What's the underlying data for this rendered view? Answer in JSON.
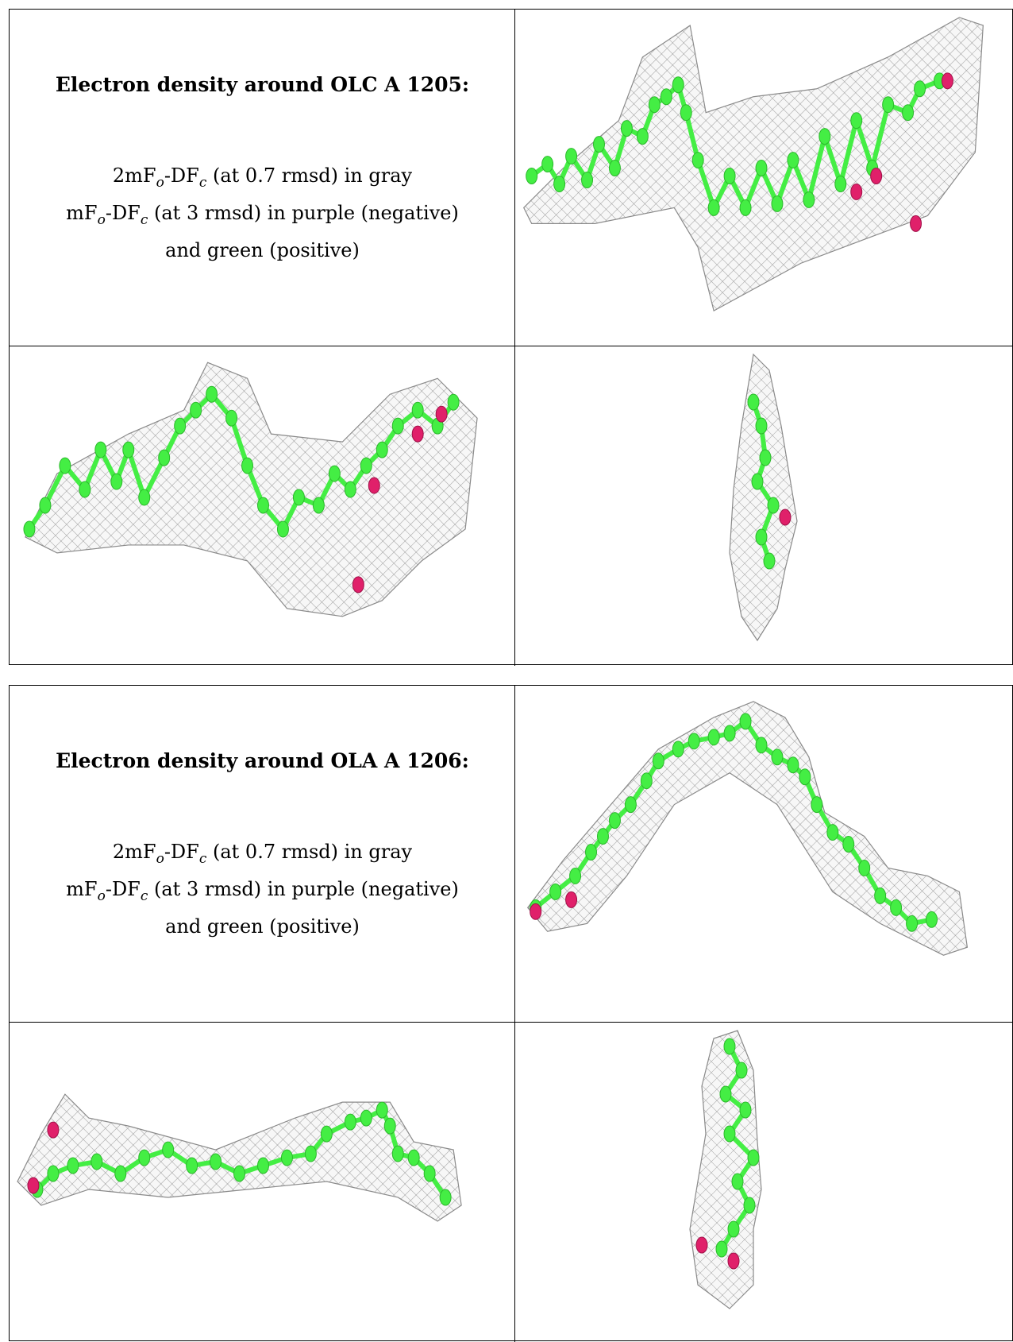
{
  "panels": [
    {
      "heading": "Electron density around OLC A 1205:",
      "caption": {
        "line1_a": "2mF",
        "line1_sub1": "o",
        "line1_b": "-DF",
        "line1_sub2": "c",
        "line1_c": " (at 0.7 rmsd) in gray",
        "line2_a": "mF",
        "line2_sub1": "o",
        "line2_b": "-DF",
        "line2_sub2": "c",
        "line2_c": " (at 3 rmsd) in purple (negative)",
        "line3": "and green (positive)"
      }
    },
    {
      "heading": "Electron density around OLA A 1206:",
      "caption": {
        "line1_a": "2mF",
        "line1_sub1": "o",
        "line1_b": "-DF",
        "line1_sub2": "c",
        "line1_c": " (at 0.7 rmsd) in gray",
        "line2_a": "mF",
        "line2_sub1": "o",
        "line2_b": "-DF",
        "line2_sub2": "c",
        "line2_c": " (at 3 rmsd) in purple (negative)",
        "line3": "and green (positive)"
      }
    }
  ],
  "colors": {
    "carbon": "#44ee44",
    "oxygen": "#e0206a",
    "mesh": "#8a8a8a"
  }
}
